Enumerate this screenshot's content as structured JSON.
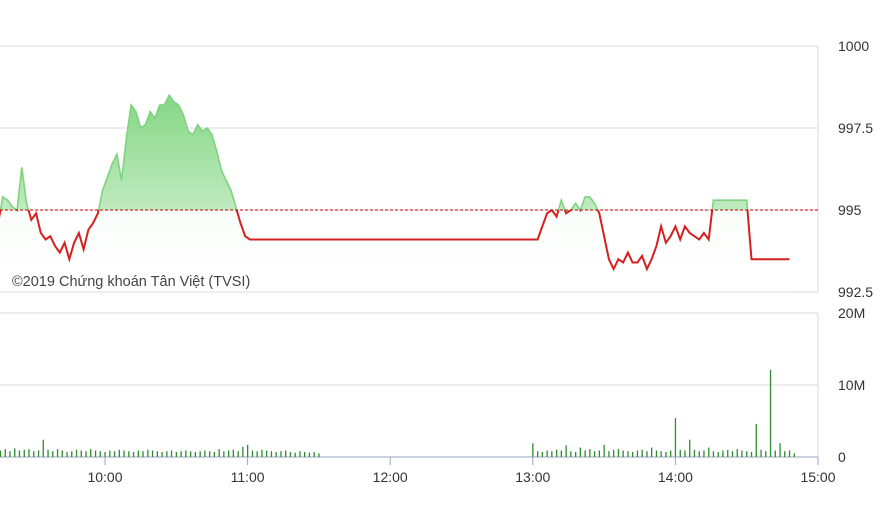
{
  "chart_data": [
    {
      "type": "area",
      "watermark": "©2019 Chứng khoán Tân Việt (TVSI)",
      "reference_value": 995,
      "ylim": [
        992.5,
        1000
      ],
      "y_ticks": [
        {
          "value": 1000,
          "label": "1000"
        },
        {
          "value": 997.5,
          "label": "997.5"
        },
        {
          "value": 995,
          "label": "995"
        },
        {
          "value": 992.5,
          "label": "992.5"
        }
      ],
      "xlim": [
        "09:15",
        "15:00"
      ],
      "x_ticks": [
        {
          "value": "10:00",
          "label": "10:00"
        },
        {
          "value": "11:00",
          "label": "11:00"
        },
        {
          "value": "12:00",
          "label": "12:00"
        },
        {
          "value": "13:00",
          "label": "13:00"
        },
        {
          "value": "14:00",
          "label": "14:00"
        },
        {
          "value": "15:00",
          "label": "15:00"
        }
      ],
      "grid": true,
      "colors": {
        "above": "#7ed47e",
        "below": "#d42020",
        "reference": "#c00000",
        "grid": "#d8d8d8"
      },
      "series": [
        {
          "x": [
            "09:15",
            "09:17",
            "09:19",
            "09:21",
            "09:23",
            "09:25",
            "09:27",
            "09:29",
            "09:31",
            "09:33",
            "09:35",
            "09:37",
            "09:39",
            "09:41",
            "09:43",
            "09:45",
            "09:47",
            "09:49",
            "09:51",
            "09:53",
            "09:55",
            "09:57",
            "09:59",
            "10:01",
            "10:03",
            "10:05",
            "10:07",
            "10:09",
            "10:11",
            "10:13",
            "10:15",
            "10:17",
            "10:19",
            "10:21",
            "10:23",
            "10:25",
            "10:27",
            "10:29",
            "10:31",
            "10:33",
            "10:35",
            "10:37",
            "10:39",
            "10:41",
            "10:43",
            "10:45",
            "10:47",
            "10:49",
            "10:51",
            "10:53",
            "10:55",
            "10:57",
            "10:59",
            "11:01",
            "11:03",
            "11:05",
            "11:07",
            "11:09",
            "11:11",
            "11:13",
            "11:15",
            "11:17",
            "11:19",
            "11:21",
            "11:23",
            "11:25",
            "11:27",
            "11:29",
            "11:30",
            "13:00",
            "13:02",
            "13:04",
            "13:06",
            "13:08",
            "13:10",
            "13:12",
            "13:14",
            "13:16",
            "13:18",
            "13:20",
            "13:22",
            "13:24",
            "13:26",
            "13:28",
            "13:30",
            "13:32",
            "13:34",
            "13:36",
            "13:38",
            "13:40",
            "13:42",
            "13:44",
            "13:46",
            "13:48",
            "13:50",
            "13:52",
            "13:54",
            "13:56",
            "13:58",
            "14:00",
            "14:02",
            "14:04",
            "14:06",
            "14:08",
            "14:10",
            "14:12",
            "14:14",
            "14:16",
            "14:18",
            "14:20",
            "14:22",
            "14:24",
            "14:26",
            "14:28",
            "14:30",
            "14:32",
            "14:34",
            "14:36",
            "14:38",
            "14:40",
            "14:42",
            "14:44",
            "14:46",
            "14:48"
          ],
          "y": [
            994.6,
            995.4,
            995.3,
            995.1,
            995.0,
            996.3,
            995.2,
            994.7,
            994.9,
            994.3,
            994.1,
            994.2,
            993.9,
            993.7,
            994.0,
            993.5,
            994.0,
            994.3,
            993.8,
            994.4,
            994.6,
            994.9,
            995.6,
            996.0,
            996.4,
            996.7,
            995.9,
            997.2,
            998.2,
            998.0,
            997.5,
            997.6,
            998.0,
            997.8,
            998.2,
            998.2,
            998.5,
            998.3,
            998.2,
            997.9,
            997.4,
            997.3,
            997.6,
            997.4,
            997.5,
            997.3,
            996.8,
            996.2,
            995.9,
            995.6,
            995.1,
            994.6,
            994.2,
            994.1,
            994.1,
            994.1,
            994.1,
            994.1,
            994.1,
            994.1,
            994.1,
            994.1,
            994.1,
            994.1,
            994.1,
            994.1,
            994.1,
            994.1,
            994.1,
            994.1,
            994.1,
            994.5,
            994.9,
            995.0,
            994.8,
            995.3,
            994.9,
            995.0,
            995.2,
            995.0,
            995.4,
            995.4,
            995.2,
            994.9,
            994.2,
            993.5,
            993.2,
            993.5,
            993.4,
            993.7,
            993.4,
            993.4,
            993.6,
            993.2,
            993.5,
            993.9,
            994.5,
            994.0,
            994.2,
            994.5,
            994.1,
            994.5,
            994.3,
            994.2,
            994.1,
            994.3,
            994.1,
            995.3,
            995.3,
            995.3,
            995.3,
            995.3,
            995.3,
            995.3,
            995.3,
            993.5,
            993.5,
            993.5,
            993.5,
            993.5,
            993.5,
            993.5,
            993.5,
            993.5
          ]
        }
      ]
    },
    {
      "type": "bar",
      "ylim": [
        0,
        20
      ],
      "unit": "M",
      "y_ticks": [
        {
          "value": 20,
          "label": "20M"
        },
        {
          "value": 10,
          "label": "10M"
        },
        {
          "value": 0,
          "label": "0"
        }
      ],
      "grid": true,
      "colors": {
        "bar": "#2e8b2e"
      },
      "series": [
        {
          "x": [
            "09:16",
            "09:18",
            "09:20",
            "09:22",
            "09:24",
            "09:26",
            "09:28",
            "09:30",
            "09:32",
            "09:34",
            "09:36",
            "09:38",
            "09:40",
            "09:42",
            "09:44",
            "09:46",
            "09:48",
            "09:50",
            "09:52",
            "09:54",
            "09:56",
            "09:58",
            "10:00",
            "10:02",
            "10:04",
            "10:06",
            "10:08",
            "10:10",
            "10:12",
            "10:14",
            "10:16",
            "10:18",
            "10:20",
            "10:22",
            "10:24",
            "10:26",
            "10:28",
            "10:30",
            "10:32",
            "10:34",
            "10:36",
            "10:38",
            "10:40",
            "10:42",
            "10:44",
            "10:46",
            "10:48",
            "10:50",
            "10:52",
            "10:54",
            "10:56",
            "10:58",
            "11:00",
            "11:02",
            "11:04",
            "11:06",
            "11:08",
            "11:10",
            "11:12",
            "11:14",
            "11:16",
            "11:18",
            "11:20",
            "11:22",
            "11:24",
            "11:26",
            "11:28",
            "11:30",
            "13:00",
            "13:02",
            "13:04",
            "13:06",
            "13:08",
            "13:10",
            "13:12",
            "13:14",
            "13:16",
            "13:18",
            "13:20",
            "13:22",
            "13:24",
            "13:26",
            "13:28",
            "13:30",
            "13:32",
            "13:34",
            "13:36",
            "13:38",
            "13:40",
            "13:42",
            "13:44",
            "13:46",
            "13:48",
            "13:50",
            "13:52",
            "13:54",
            "13:56",
            "13:58",
            "14:00",
            "14:02",
            "14:04",
            "14:06",
            "14:08",
            "14:10",
            "14:12",
            "14:14",
            "14:16",
            "14:18",
            "14:20",
            "14:22",
            "14:24",
            "14:26",
            "14:28",
            "14:30",
            "14:32",
            "14:34",
            "14:36",
            "14:38",
            "14:40",
            "14:42",
            "14:44",
            "14:46",
            "14:48",
            "14:50"
          ],
          "values": [
            0.9,
            1.1,
            0.8,
            1.2,
            0.9,
            1.0,
            1.1,
            0.8,
            0.9,
            2.4,
            1.0,
            0.8,
            1.1,
            0.9,
            0.7,
            0.8,
            1.0,
            0.9,
            0.8,
            1.1,
            0.9,
            0.8,
            0.7,
            0.9,
            0.8,
            1.0,
            0.9,
            0.8,
            0.7,
            0.9,
            0.8,
            1.0,
            0.9,
            0.8,
            0.7,
            0.8,
            0.9,
            0.7,
            0.8,
            0.9,
            0.8,
            0.7,
            0.8,
            0.9,
            0.8,
            0.7,
            1.1,
            0.8,
            0.9,
            1.0,
            0.8,
            1.4,
            1.7,
            0.9,
            0.8,
            1.0,
            0.9,
            0.8,
            0.7,
            0.8,
            0.9,
            0.7,
            0.6,
            0.8,
            0.7,
            0.6,
            0.7,
            0.5,
            1.9,
            0.8,
            0.7,
            0.9,
            0.8,
            1.0,
            0.9,
            1.6,
            0.8,
            0.7,
            1.3,
            0.9,
            1.1,
            0.8,
            0.9,
            1.7,
            0.8,
            1.0,
            1.1,
            0.9,
            0.8,
            0.7,
            0.9,
            1.0,
            0.8,
            1.3,
            0.9,
            0.8,
            0.7,
            0.9,
            5.4,
            1.0,
            0.9,
            2.4,
            1.0,
            0.8,
            0.9,
            1.3,
            0.8,
            0.7,
            0.9,
            1.0,
            0.8,
            1.1,
            0.9,
            0.8,
            0.7,
            4.6,
            1.0,
            0.8,
            12.1,
            0.9,
            1.9,
            0.8,
            0.9,
            0.5
          ]
        }
      ]
    }
  ]
}
